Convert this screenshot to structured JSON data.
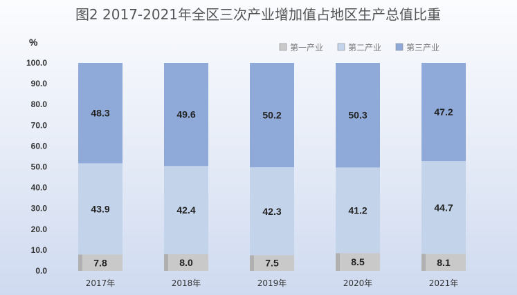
{
  "chart_data": {
    "type": "bar",
    "stacked": true,
    "title": "图2 2017-2021年全区三次产业增加值占地区生产总值比重",
    "unit": "%",
    "xlabel": "",
    "ylabel": "",
    "categories": [
      "2017年",
      "2018年",
      "2019年",
      "2020年",
      "2021年"
    ],
    "series": [
      {
        "name": "第一产业",
        "values": [
          7.8,
          8.0,
          7.5,
          8.5,
          8.1
        ],
        "color": "#c9c9c9"
      },
      {
        "name": "第二产业",
        "values": [
          43.9,
          42.4,
          42.3,
          41.2,
          44.7
        ],
        "color": "#c3d3ea"
      },
      {
        "name": "第三产业",
        "values": [
          48.3,
          49.6,
          50.2,
          50.3,
          47.2
        ],
        "color": "#8faad8"
      }
    ],
    "ylim": [
      0,
      100
    ],
    "yticks": [
      "0.0",
      "10.0",
      "20.0",
      "30.0",
      "40.0",
      "50.0",
      "60.0",
      "70.0",
      "80.0",
      "90.0",
      "100.0"
    ],
    "legend_position": "top-right",
    "grid": false
  }
}
